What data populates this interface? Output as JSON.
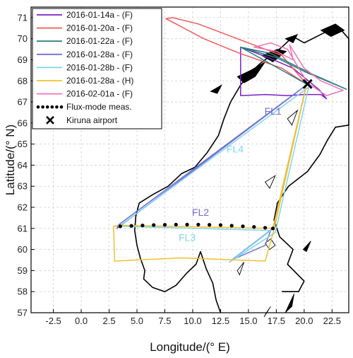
{
  "chart_data": {
    "type": "line",
    "xlabel": "Longitude/(° E)",
    "ylabel": "Latitude/(° N)",
    "xlim": [
      -4.5,
      24
    ],
    "ylim": [
      57,
      71.5
    ],
    "x_ticks": [
      -2.5,
      0.0,
      2.5,
      5.0,
      7.5,
      10.0,
      12.5,
      15.0,
      17.5,
      20.0,
      22.5
    ],
    "x_tick_labels": [
      "-2.5",
      "0.0",
      "2.5",
      "5.0",
      "7.5",
      "10.0",
      "12.5",
      "15.0",
      "17.5",
      "20.0",
      "22.5"
    ],
    "y_ticks": [
      57,
      58,
      59,
      60,
      61,
      62,
      63,
      64,
      65,
      66,
      67,
      68,
      69,
      70,
      71
    ],
    "y_tick_labels": [
      "57",
      "58",
      "59",
      "60",
      "61",
      "62",
      "63",
      "64",
      "65",
      "66",
      "67",
      "68",
      "69",
      "70",
      "71"
    ],
    "grid": true,
    "legend_position": "top-left",
    "series": [
      {
        "name": "2016-01-14a - (F)",
        "color": "#7b1fc4",
        "points": [
          [
            14.3,
            69.6
          ],
          [
            14.3,
            67.3
          ],
          [
            16.5,
            67.35
          ],
          [
            18.5,
            67.3
          ],
          [
            20.0,
            67.35
          ],
          [
            21.5,
            67.35
          ],
          [
            22.0,
            67.15
          ],
          [
            21.4,
            67.55
          ],
          [
            20.5,
            67.95
          ],
          [
            19.0,
            68.6
          ],
          [
            16.8,
            69.1
          ],
          [
            14.3,
            69.6
          ]
        ]
      },
      {
        "name": "2016-01-20a - (F)",
        "color": "#f05a5a",
        "points": [
          [
            20.2,
            67.85
          ],
          [
            18.0,
            68.6
          ],
          [
            14.0,
            69.35
          ],
          [
            11.0,
            70.0
          ],
          [
            8.5,
            70.7
          ],
          [
            7.6,
            70.95
          ],
          [
            8.2,
            71.0
          ],
          [
            10.5,
            70.7
          ],
          [
            14.0,
            70.0
          ],
          [
            18.0,
            69.2
          ],
          [
            20.2,
            67.85
          ]
        ]
      },
      {
        "name": "2016-01-22a - (F)",
        "color": "#2f7f7f",
        "points": [
          [
            20.2,
            67.85
          ],
          [
            14.3,
            69.6
          ],
          [
            17.5,
            69.1
          ],
          [
            20.2,
            68.4
          ],
          [
            23.8,
            67.6
          ],
          [
            20.8,
            68.3
          ],
          [
            17.0,
            69.3
          ],
          [
            14.3,
            69.6
          ]
        ]
      },
      {
        "name": "2016-01-28a - (F)",
        "color": "#6f6fd6",
        "points": [
          [
            20.2,
            67.8
          ],
          [
            3.2,
            61.0
          ],
          [
            3.3,
            61.15
          ],
          [
            20.2,
            67.8
          ],
          [
            17.2,
            61.0
          ],
          [
            13.5,
            59.5
          ],
          [
            16.5,
            60.2
          ],
          [
            17.1,
            61.05
          ]
        ]
      },
      {
        "name": "2016-01-28b - (F)",
        "color": "#7fd4ee",
        "points": [
          [
            20.4,
            67.7
          ],
          [
            3.4,
            61.1
          ],
          [
            17.0,
            60.9
          ],
          [
            13.3,
            59.4
          ],
          [
            17.4,
            60.8
          ],
          [
            20.4,
            67.7
          ]
        ]
      },
      {
        "name": "2016-01-28a - (H)",
        "color": "#f0c030",
        "points": [
          [
            20.2,
            67.8
          ],
          [
            17.3,
            60.95
          ],
          [
            16.5,
            59.45
          ],
          [
            9.0,
            59.6
          ],
          [
            3.0,
            59.45
          ],
          [
            2.9,
            61.1
          ],
          [
            3.4,
            61.15
          ],
          [
            17.2,
            61.0
          ],
          [
            20.2,
            67.8
          ]
        ]
      },
      {
        "name": "2016-02-01a - (F)",
        "color": "#f070b8",
        "points": [
          [
            20.3,
            67.9
          ],
          [
            18.5,
            69.5
          ],
          [
            17.0,
            69.8
          ],
          [
            15.5,
            69.6
          ],
          [
            17.5,
            69.4
          ],
          [
            19.0,
            69.0
          ],
          [
            18.7,
            69.7
          ],
          [
            20.0,
            68.6
          ],
          [
            21.5,
            68.0
          ],
          [
            23.5,
            67.55
          ],
          [
            22.0,
            67.3
          ],
          [
            20.3,
            67.9
          ]
        ]
      }
    ],
    "flux_mode": {
      "name": "Flux-mode meas.",
      "color": "#000000",
      "points": [
        [
          3.5,
          61.1
        ],
        [
          4.5,
          61.12
        ],
        [
          5.5,
          61.14
        ],
        [
          6.5,
          61.16
        ],
        [
          7.5,
          61.17
        ],
        [
          8.5,
          61.18
        ],
        [
          9.5,
          61.18
        ],
        [
          10.5,
          61.18
        ],
        [
          11.5,
          61.17
        ],
        [
          12.5,
          61.16
        ],
        [
          13.5,
          61.13
        ],
        [
          14.5,
          61.1
        ],
        [
          15.5,
          61.07
        ],
        [
          16.5,
          61.03
        ],
        [
          17.2,
          61.0
        ]
      ]
    },
    "marker": {
      "name": "Kiruna airport",
      "lon": 20.3,
      "lat": 67.85,
      "color": "#000000"
    },
    "annotations": [
      {
        "text": "FL1",
        "lon": 17.2,
        "lat": 66.4,
        "color": "#6f6fd6"
      },
      {
        "text": "FL4",
        "lon": 13.8,
        "lat": 64.6,
        "color": "#7fd4ee"
      },
      {
        "text": "FL2",
        "lon": 10.7,
        "lat": 61.6,
        "color": "#6f6fd6"
      },
      {
        "text": "FL3",
        "lon": 9.5,
        "lat": 60.4,
        "color": "#7fd4ee"
      }
    ]
  },
  "legend": [
    {
      "label": "2016-01-14a - (F)",
      "color": "#7b1fc4",
      "style": "line"
    },
    {
      "label": "2016-01-20a - (F)",
      "color": "#f05a5a",
      "style": "line"
    },
    {
      "label": "2016-01-22a - (F)",
      "color": "#2f7f7f",
      "style": "line"
    },
    {
      "label": "2016-01-28a - (F)",
      "color": "#6f6fd6",
      "style": "line"
    },
    {
      "label": "2016-01-28b - (F)",
      "color": "#7fd4ee",
      "style": "line"
    },
    {
      "label": "2016-01-28a - (H)",
      "color": "#f0c030",
      "style": "line"
    },
    {
      "label": "2016-02-01a - (F)",
      "color": "#f070b8",
      "style": "line"
    },
    {
      "label": "Flux-mode meas.",
      "color": "#000000",
      "style": "dots"
    },
    {
      "label": "Kiruna airport",
      "color": "#000000",
      "style": "x-marker"
    }
  ],
  "coastline": {
    "color": "#000000",
    "mainland": [
      [
        18.0,
        58.0
      ],
      [
        19.5,
        58.0
      ],
      [
        20.0,
        58.5
      ],
      [
        18.5,
        59.3
      ],
      [
        19.0,
        60.0
      ],
      [
        17.8,
        60.6
      ],
      [
        17.3,
        61.4
      ],
      [
        17.6,
        62.2
      ],
      [
        18.6,
        63.0
      ],
      [
        20.3,
        63.7
      ],
      [
        21.4,
        64.5
      ],
      [
        22.1,
        65.2
      ],
      [
        22.8,
        65.8
      ],
      [
        24.0,
        65.9
      ],
      [
        24.0,
        70.0
      ],
      [
        23.0,
        70.6
      ],
      [
        21.5,
        70.2
      ],
      [
        20.0,
        69.8
      ],
      [
        19.0,
        70.1
      ],
      [
        18.0,
        69.6
      ],
      [
        17.0,
        69.2
      ],
      [
        16.0,
        68.8
      ],
      [
        15.0,
        68.3
      ],
      [
        14.3,
        67.8
      ],
      [
        13.4,
        67.0
      ],
      [
        12.8,
        66.2
      ],
      [
        12.3,
        65.4
      ],
      [
        11.3,
        64.6
      ],
      [
        10.2,
        63.9
      ],
      [
        9.0,
        63.6
      ],
      [
        7.8,
        63.0
      ],
      [
        6.4,
        62.6
      ],
      [
        5.2,
        62.2
      ],
      [
        4.9,
        61.6
      ],
      [
        4.8,
        60.9
      ],
      [
        5.0,
        60.2
      ],
      [
        5.3,
        59.6
      ],
      [
        5.7,
        59.0
      ],
      [
        5.6,
        58.6
      ],
      [
        6.4,
        58.2
      ],
      [
        7.5,
        58.0
      ],
      [
        8.5,
        58.3
      ],
      [
        9.5,
        58.9
      ],
      [
        10.3,
        59.3
      ],
      [
        10.7,
        59.9
      ],
      [
        11.2,
        59.1
      ],
      [
        11.8,
        58.4
      ],
      [
        12.1,
        57.6
      ],
      [
        12.5,
        57.0
      ]
    ],
    "islands": [
      [
        [
          14.0,
          68.2
        ],
        [
          15.2,
          68.5
        ],
        [
          16.5,
          68.9
        ],
        [
          15.6,
          68.2
        ],
        [
          14.6,
          67.9
        ]
      ],
      [
        [
          16.2,
          69.2
        ],
        [
          17.6,
          69.5
        ],
        [
          18.4,
          69.4
        ],
        [
          17.2,
          68.9
        ]
      ],
      [
        [
          18.3,
          70.0
        ],
        [
          19.4,
          70.2
        ],
        [
          19.0,
          69.8
        ]
      ],
      [
        [
          21.5,
          70.4
        ],
        [
          22.8,
          70.7
        ],
        [
          23.6,
          70.4
        ],
        [
          22.4,
          70.1
        ]
      ],
      [
        [
          18.3,
          57.0
        ],
        [
          19.1,
          57.9
        ],
        [
          18.9,
          57.3
        ]
      ],
      [
        [
          16.4,
          56.8
        ],
        [
          17.0,
          57.3
        ],
        [
          16.6,
          57.0
        ]
      ],
      [
        [
          11.6,
          67.5
        ],
        [
          12.6,
          67.8
        ],
        [
          12.2,
          67.4
        ]
      ],
      [
        [
          19.9,
          60.0
        ],
        [
          20.6,
          60.4
        ],
        [
          20.2,
          59.9
        ]
      ]
    ],
    "inland": [
      [
        [
          16.5,
          60.3
        ],
        [
          17.0,
          60.5
        ],
        [
          17.4,
          60.2
        ],
        [
          16.9,
          60.0
        ]
      ],
      [
        [
          14.0,
          59.0
        ],
        [
          14.6,
          59.4
        ],
        [
          14.2,
          58.8
        ]
      ],
      [
        [
          16.5,
          63.2
        ],
        [
          17.4,
          63.5
        ],
        [
          16.9,
          62.9
        ]
      ],
      [
        [
          18.5,
          66.2
        ],
        [
          19.4,
          66.6
        ],
        [
          18.9,
          65.9
        ]
      ]
    ]
  }
}
